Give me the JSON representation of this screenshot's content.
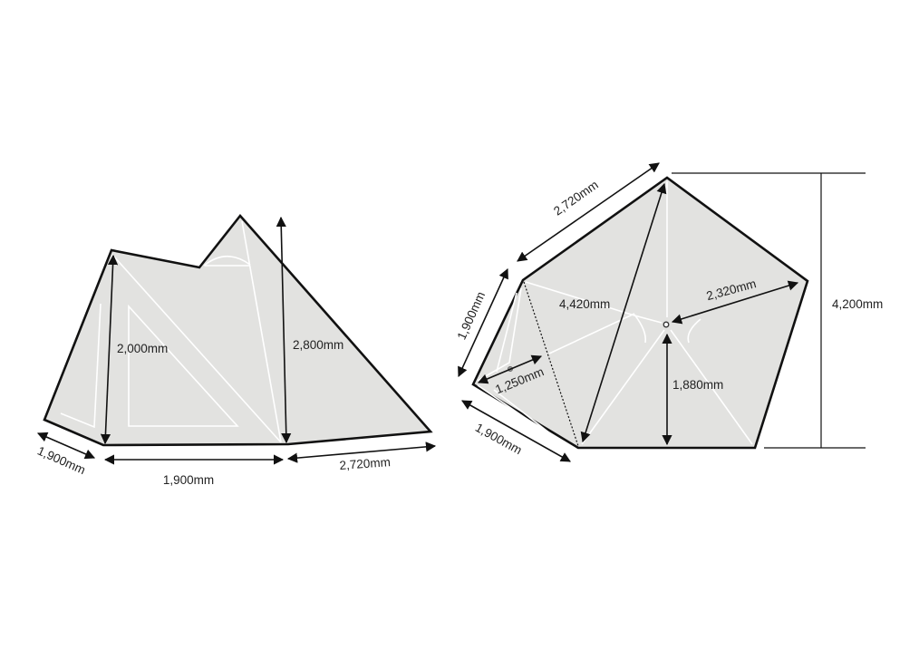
{
  "side_view": {
    "labels": {
      "height_front": "2,000mm",
      "height_peak": "2,800mm",
      "width_side": "1,900mm",
      "width_front": "1,900mm",
      "length_rear": "2,720mm"
    }
  },
  "top_view": {
    "labels": {
      "edge_top_left": "2,720mm",
      "edge_left": "1,900mm",
      "edge_bottom_left": "1,900mm",
      "diagonal": "4,420mm",
      "radius": "2,320mm",
      "center_to_bottom": "1,880mm",
      "vestibule_depth": "1,250mm",
      "total_height": "4,200mm"
    }
  },
  "colors": {
    "fill": "#e2e2e0",
    "outline": "#111111",
    "seams": "#ffffff"
  }
}
